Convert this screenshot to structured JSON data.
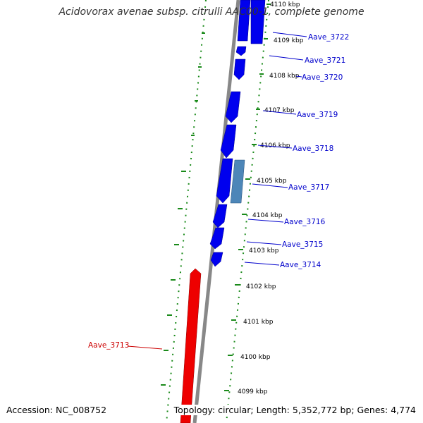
{
  "title": "Acidovorax avenae subsp. citrulli AAC00-1, complete genome",
  "footer": {
    "accession": "Accession: NC_008752",
    "topology": "Topology: circular; Length: 5,352,772 bp; Genes: 4,774"
  },
  "colors": {
    "forward_gene": "#0000ee",
    "highlight_gene": "#4d86b8",
    "reverse_gene": "#ee0000",
    "backbone": "#888888",
    "dotted_track": "#1a8a1a",
    "forward_label": "#0000cc",
    "reverse_label": "#cc0000"
  },
  "ticks": [
    {
      "label": "4110 kbp"
    },
    {
      "label": "4109 kbp"
    },
    {
      "label": "4108 kbp"
    },
    {
      "label": "4107 kbp"
    },
    {
      "label": "4106 kbp"
    },
    {
      "label": "4105 kbp"
    },
    {
      "label": "4104 kbp"
    },
    {
      "label": "4103 kbp"
    },
    {
      "label": "4102 kbp"
    },
    {
      "label": "4101 kbp"
    },
    {
      "label": "4100 kbp"
    },
    {
      "label": "4099 kbp"
    }
  ],
  "genes": [
    {
      "label": "Aave_3722"
    },
    {
      "label": "Aave_3721"
    },
    {
      "label": "Aave_3720"
    },
    {
      "label": "Aave_3719"
    },
    {
      "label": "Aave_3718"
    },
    {
      "label": "Aave_3717"
    },
    {
      "label": "Aave_3716"
    },
    {
      "label": "Aave_3715"
    },
    {
      "label": "Aave_3714"
    },
    {
      "label": "Aave_3713"
    }
  ]
}
